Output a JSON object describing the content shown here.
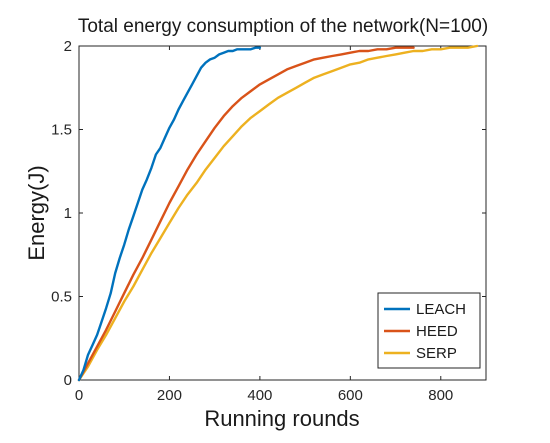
{
  "chart_data": {
    "type": "line",
    "title": "Total energy consumption of the network(N=100)",
    "xlabel": "Running rounds",
    "ylabel": "Energy(J)",
    "xlim": [
      0,
      900
    ],
    "ylim": [
      0,
      2
    ],
    "xticks": [
      0,
      200,
      400,
      600,
      800
    ],
    "xtick_labels": [
      "0",
      "200",
      "400",
      "600",
      "800"
    ],
    "yticks": [
      0,
      0.5,
      1,
      1.5,
      2
    ],
    "ytick_labels": [
      "0",
      "0.5",
      "1",
      "1.5",
      "2"
    ],
    "grid": false,
    "legend_position": "bottom-right",
    "series": [
      {
        "name": "LEACH",
        "color": "#0072BD",
        "x": [
          0,
          10,
          20,
          30,
          40,
          50,
          60,
          70,
          80,
          90,
          100,
          110,
          120,
          130,
          140,
          150,
          160,
          170,
          180,
          190,
          200,
          210,
          220,
          230,
          240,
          250,
          260,
          270,
          280,
          290,
          300,
          310,
          320,
          330,
          340,
          350,
          360,
          370,
          380,
          390,
          400
        ],
        "y": [
          0,
          0.06,
          0.15,
          0.21,
          0.27,
          0.35,
          0.43,
          0.52,
          0.64,
          0.73,
          0.81,
          0.9,
          0.98,
          1.06,
          1.14,
          1.2,
          1.27,
          1.35,
          1.39,
          1.45,
          1.51,
          1.56,
          1.62,
          1.67,
          1.72,
          1.77,
          1.82,
          1.87,
          1.9,
          1.92,
          1.93,
          1.95,
          1.96,
          1.97,
          1.97,
          1.98,
          1.98,
          1.98,
          1.98,
          1.99,
          1.99
        ]
      },
      {
        "name": "HEED",
        "color": "#D95319",
        "x": [
          0,
          20,
          40,
          60,
          80,
          100,
          120,
          140,
          160,
          180,
          200,
          220,
          240,
          260,
          280,
          300,
          320,
          340,
          360,
          380,
          400,
          420,
          440,
          460,
          480,
          500,
          520,
          540,
          560,
          580,
          600,
          620,
          640,
          660,
          680,
          700,
          720,
          740
        ],
        "y": [
          0,
          0.1,
          0.2,
          0.3,
          0.41,
          0.52,
          0.63,
          0.73,
          0.84,
          0.95,
          1.06,
          1.16,
          1.26,
          1.35,
          1.43,
          1.51,
          1.58,
          1.64,
          1.69,
          1.73,
          1.77,
          1.8,
          1.83,
          1.86,
          1.88,
          1.9,
          1.92,
          1.93,
          1.94,
          1.95,
          1.96,
          1.97,
          1.97,
          1.98,
          1.98,
          1.99,
          1.99,
          1.99
        ]
      },
      {
        "name": "SERP",
        "color": "#EDB120",
        "x": [
          0,
          20,
          40,
          60,
          80,
          100,
          120,
          140,
          160,
          180,
          200,
          220,
          240,
          260,
          280,
          300,
          320,
          340,
          360,
          380,
          400,
          420,
          440,
          460,
          480,
          500,
          520,
          540,
          560,
          580,
          600,
          620,
          640,
          660,
          680,
          700,
          720,
          740,
          760,
          780,
          800,
          820,
          840,
          860,
          880
        ],
        "y": [
          0,
          0.08,
          0.18,
          0.27,
          0.37,
          0.47,
          0.56,
          0.66,
          0.76,
          0.85,
          0.94,
          1.03,
          1.11,
          1.18,
          1.26,
          1.33,
          1.4,
          1.46,
          1.52,
          1.57,
          1.61,
          1.65,
          1.69,
          1.72,
          1.75,
          1.78,
          1.81,
          1.83,
          1.85,
          1.87,
          1.89,
          1.9,
          1.92,
          1.93,
          1.94,
          1.95,
          1.96,
          1.97,
          1.97,
          1.98,
          1.98,
          1.99,
          1.99,
          1.99,
          2.0
        ]
      }
    ]
  }
}
